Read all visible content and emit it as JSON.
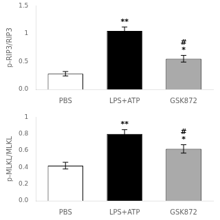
{
  "chart_data": [
    {
      "type": "bar",
      "categories": [
        "PBS",
        "LPS+ATP",
        "GSK872"
      ],
      "values": [
        0.28,
        1.05,
        0.55
      ],
      "errors": [
        0.04,
        0.07,
        0.06
      ],
      "colors": [
        "white",
        "black",
        "#aaaaaa"
      ],
      "ylabel": "p-RIP3/RIP3",
      "ylim": [
        0.0,
        1.5
      ],
      "yticks": [
        {
          "value": 0.0,
          "label": "0.0"
        },
        0.5,
        1,
        1.5
      ],
      "annotations": [
        {
          "category": "LPS+ATP",
          "text": "**"
        },
        {
          "category": "GSK872",
          "text": "*\n#"
        }
      ],
      "grid": false
    },
    {
      "type": "bar",
      "categories": [
        "PBS",
        "LPS+ATP",
        "GSK872"
      ],
      "values": [
        0.42,
        0.8,
        0.62
      ],
      "errors": [
        0.04,
        0.05,
        0.05
      ],
      "colors": [
        "white",
        "black",
        "#aaaaaa"
      ],
      "ylabel": "p-MLKL/MLKL",
      "ylim": [
        0.0,
        1.0
      ],
      "yticks": [
        {
          "value": 0.0,
          "label": "0.0"
        },
        0.2,
        0.4,
        0.6,
        0.8,
        1
      ],
      "annotations": [
        {
          "category": "LPS+ATP",
          "text": "**"
        },
        {
          "category": "GSK872",
          "text": "*\n#"
        }
      ],
      "grid": false
    }
  ]
}
